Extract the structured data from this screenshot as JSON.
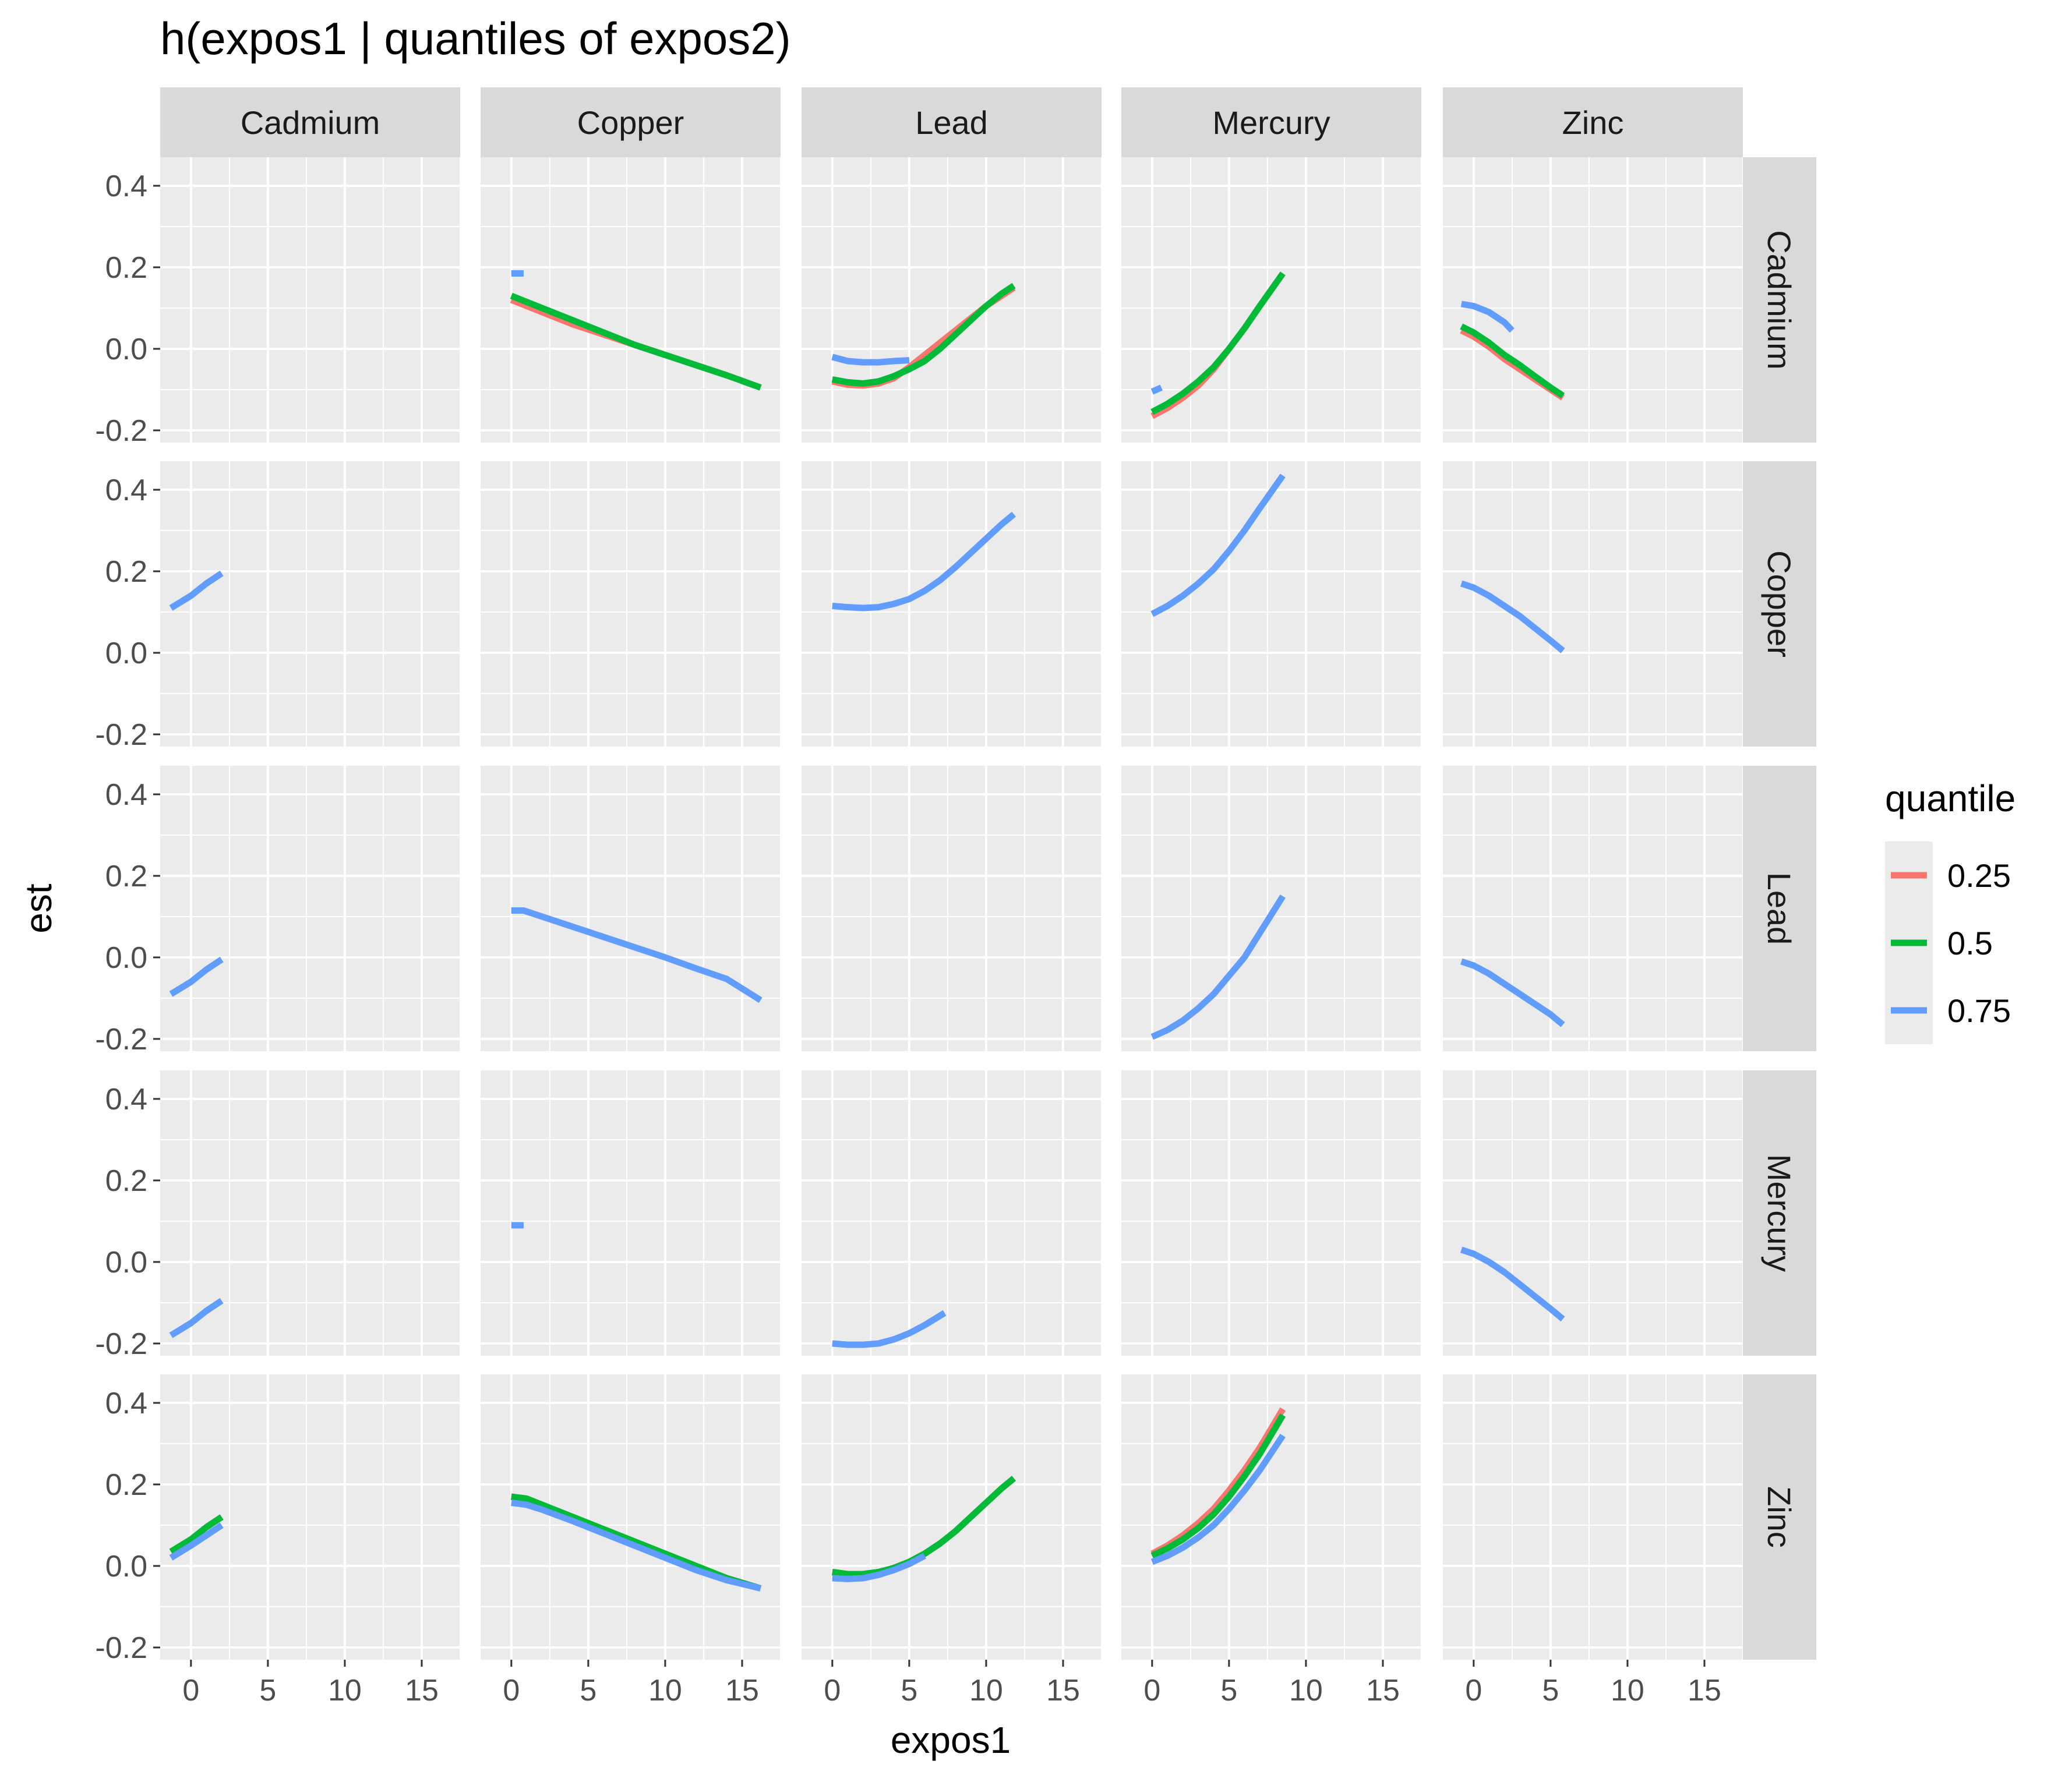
{
  "chart_data": {
    "type": "line",
    "facet": "grid",
    "title": "h(expos1 | quantiles of expos2)",
    "xlabel": "expos1",
    "ylabel": "est",
    "xlim": [
      -2,
      17.5
    ],
    "ylim": [
      -0.23,
      0.47
    ],
    "x_ticks": [
      0,
      5,
      10,
      15
    ],
    "x_tick_labels": [
      "0",
      "5",
      "10",
      "15"
    ],
    "y_ticks": [
      0.4,
      0.2,
      0.0,
      -0.2
    ],
    "y_tick_labels": [
      "0.4",
      "0.2",
      "0.0",
      "-0.2"
    ],
    "col_labels": [
      "Cadmium",
      "Copper",
      "Lead",
      "Mercury",
      "Zinc"
    ],
    "row_labels": [
      "Cadmium",
      "Copper",
      "Lead",
      "Mercury",
      "Zinc"
    ],
    "legend": {
      "title": "quantile",
      "position": "right",
      "items": [
        {
          "label": "0.25",
          "color": "#F8766D"
        },
        {
          "label": "0.5",
          "color": "#00BA38"
        },
        {
          "label": "0.75",
          "color": "#619CFF"
        }
      ]
    },
    "colors": {
      "0.25": "#F8766D",
      "0.5": "#00BA38",
      "0.75": "#619CFF"
    },
    "panels": [
      {
        "row": 0,
        "col": 1,
        "series": [
          {
            "quantile": "0.75",
            "x": [
              0.0,
              0.8
            ],
            "y": [
              0.185,
              0.185
            ]
          },
          {
            "quantile": "0.25",
            "x": [
              0,
              2,
              4,
              6,
              8,
              10,
              12,
              14,
              16.2
            ],
            "y": [
              0.12,
              0.09,
              0.06,
              0.035,
              0.01,
              -0.015,
              -0.04,
              -0.065,
              -0.095
            ]
          },
          {
            "quantile": "0.5",
            "x": [
              0,
              2,
              4,
              6,
              8,
              10,
              12,
              14,
              16.2
            ],
            "y": [
              0.13,
              0.1,
              0.07,
              0.04,
              0.01,
              -0.015,
              -0.04,
              -0.065,
              -0.095
            ]
          }
        ]
      },
      {
        "row": 0,
        "col": 2,
        "series": [
          {
            "quantile": "0.75",
            "x": [
              0,
              1,
              2,
              3,
              4,
              5
            ],
            "y": [
              -0.02,
              -0.03,
              -0.033,
              -0.033,
              -0.03,
              -0.028
            ]
          },
          {
            "quantile": "0.25",
            "x": [
              0,
              1,
              2,
              3,
              4,
              5,
              6,
              7,
              8,
              9,
              10,
              11,
              11.8
            ],
            "y": [
              -0.08,
              -0.088,
              -0.09,
              -0.085,
              -0.072,
              -0.045,
              -0.015,
              0.015,
              0.045,
              0.075,
              0.105,
              0.13,
              0.15
            ]
          },
          {
            "quantile": "0.5",
            "x": [
              0,
              1,
              2,
              3,
              4,
              5,
              6,
              7,
              8,
              9,
              10,
              11,
              11.8
            ],
            "y": [
              -0.075,
              -0.082,
              -0.085,
              -0.08,
              -0.067,
              -0.05,
              -0.03,
              0.0,
              0.035,
              0.07,
              0.105,
              0.135,
              0.155
            ]
          }
        ]
      },
      {
        "row": 0,
        "col": 3,
        "series": [
          {
            "quantile": "0.75",
            "x": [
              0,
              0.6
            ],
            "y": [
              -0.105,
              -0.095
            ]
          },
          {
            "quantile": "0.25",
            "x": [
              0,
              1,
              2,
              3,
              4,
              5,
              6,
              7,
              8.5
            ],
            "y": [
              -0.165,
              -0.145,
              -0.12,
              -0.09,
              -0.05,
              0.0,
              0.05,
              0.105,
              0.185
            ]
          },
          {
            "quantile": "0.5",
            "x": [
              0,
              1,
              2,
              3,
              4,
              5,
              6,
              7,
              8.5
            ],
            "y": [
              -0.155,
              -0.135,
              -0.11,
              -0.08,
              -0.045,
              0.0,
              0.05,
              0.105,
              0.185
            ]
          }
        ]
      },
      {
        "row": 0,
        "col": 4,
        "series": [
          {
            "quantile": "0.75",
            "x": [
              -0.8,
              0,
              1,
              2,
              2.5
            ],
            "y": [
              0.11,
              0.105,
              0.09,
              0.065,
              0.045
            ]
          },
          {
            "quantile": "0.25",
            "x": [
              -0.8,
              0,
              1,
              2,
              3,
              4,
              5,
              5.8
            ],
            "y": [
              0.045,
              0.03,
              0.005,
              -0.025,
              -0.05,
              -0.075,
              -0.1,
              -0.12
            ]
          },
          {
            "quantile": "0.5",
            "x": [
              -0.8,
              0,
              1,
              2,
              3,
              4,
              5,
              5.8
            ],
            "y": [
              0.055,
              0.04,
              0.015,
              -0.015,
              -0.04,
              -0.068,
              -0.095,
              -0.115
            ]
          }
        ]
      },
      {
        "row": 1,
        "col": 0,
        "series": [
          {
            "quantile": "0.75",
            "x": [
              -1.3,
              0,
              1,
              2
            ],
            "y": [
              0.11,
              0.14,
              0.17,
              0.195
            ]
          }
        ]
      },
      {
        "row": 1,
        "col": 2,
        "series": [
          {
            "quantile": "0.75",
            "x": [
              0,
              1,
              2,
              3,
              4,
              5,
              6,
              7,
              8,
              9,
              10,
              11,
              11.8
            ],
            "y": [
              0.115,
              0.112,
              0.11,
              0.112,
              0.12,
              0.132,
              0.152,
              0.178,
              0.21,
              0.245,
              0.28,
              0.315,
              0.34
            ]
          }
        ]
      },
      {
        "row": 1,
        "col": 3,
        "series": [
          {
            "quantile": "0.75",
            "x": [
              0,
              1,
              2,
              3,
              4,
              5,
              6,
              7,
              8.5
            ],
            "y": [
              0.095,
              0.115,
              0.14,
              0.17,
              0.205,
              0.25,
              0.3,
              0.355,
              0.435
            ]
          }
        ]
      },
      {
        "row": 1,
        "col": 4,
        "series": [
          {
            "quantile": "0.75",
            "x": [
              -0.8,
              0,
              1,
              2,
              3,
              4,
              5,
              5.8
            ],
            "y": [
              0.17,
              0.16,
              0.14,
              0.115,
              0.09,
              0.06,
              0.03,
              0.005
            ]
          }
        ]
      },
      {
        "row": 2,
        "col": 0,
        "series": [
          {
            "quantile": "0.75",
            "x": [
              -1.3,
              0,
              1,
              2
            ],
            "y": [
              -0.09,
              -0.06,
              -0.03,
              -0.005
            ]
          }
        ]
      },
      {
        "row": 2,
        "col": 1,
        "series": [
          {
            "quantile": "0.75",
            "x": [
              0,
              0.8,
              2,
              4,
              6,
              8,
              10,
              12,
              14,
              16.2
            ],
            "y": [
              0.115,
              0.115,
              0.1,
              0.075,
              0.05,
              0.025,
              0.0,
              -0.027,
              -0.053,
              -0.105
            ]
          }
        ]
      },
      {
        "row": 2,
        "col": 3,
        "series": [
          {
            "quantile": "0.75",
            "x": [
              0,
              1,
              2,
              3,
              4,
              5,
              6,
              7,
              8.5
            ],
            "y": [
              -0.195,
              -0.178,
              -0.155,
              -0.125,
              -0.09,
              -0.045,
              0.0,
              0.06,
              0.15
            ]
          }
        ]
      },
      {
        "row": 2,
        "col": 4,
        "series": [
          {
            "quantile": "0.75",
            "x": [
              -0.8,
              0,
              1,
              2,
              3,
              4,
              5,
              5.8
            ],
            "y": [
              -0.01,
              -0.02,
              -0.04,
              -0.065,
              -0.09,
              -0.115,
              -0.14,
              -0.165
            ]
          }
        ]
      },
      {
        "row": 3,
        "col": 0,
        "series": [
          {
            "quantile": "0.75",
            "x": [
              -1.3,
              0,
              1,
              2
            ],
            "y": [
              -0.18,
              -0.15,
              -0.12,
              -0.095
            ]
          }
        ]
      },
      {
        "row": 3,
        "col": 1,
        "series": [
          {
            "quantile": "0.75",
            "x": [
              0.0,
              0.8
            ],
            "y": [
              0.09,
              0.09
            ]
          }
        ]
      },
      {
        "row": 3,
        "col": 2,
        "series": [
          {
            "quantile": "0.75",
            "x": [
              0,
              1,
              2,
              3,
              4,
              5,
              6,
              7.3
            ],
            "y": [
              -0.2,
              -0.203,
              -0.203,
              -0.2,
              -0.19,
              -0.175,
              -0.155,
              -0.125
            ]
          }
        ]
      },
      {
        "row": 3,
        "col": 4,
        "series": [
          {
            "quantile": "0.75",
            "x": [
              -0.8,
              0,
              1,
              2,
              3,
              4,
              5,
              5.8
            ],
            "y": [
              0.03,
              0.02,
              0.0,
              -0.025,
              -0.055,
              -0.085,
              -0.115,
              -0.14
            ]
          }
        ]
      },
      {
        "row": 4,
        "col": 0,
        "series": [
          {
            "quantile": "0.25",
            "x": [
              -1.3,
              0,
              1,
              2
            ],
            "y": [
              0.035,
              0.065,
              0.095,
              0.12
            ]
          },
          {
            "quantile": "0.5",
            "x": [
              -1.3,
              0,
              1,
              2
            ],
            "y": [
              0.035,
              0.065,
              0.095,
              0.12
            ]
          },
          {
            "quantile": "0.75",
            "x": [
              -1.3,
              0,
              1,
              2
            ],
            "y": [
              0.02,
              0.05,
              0.075,
              0.1
            ]
          }
        ]
      },
      {
        "row": 4,
        "col": 1,
        "series": [
          {
            "quantile": "0.25",
            "x": [
              0,
              1,
              2,
              4,
              6,
              8,
              10,
              12,
              14,
              16.2
            ],
            "y": [
              0.17,
              0.165,
              0.15,
              0.12,
              0.09,
              0.06,
              0.03,
              0.0,
              -0.03,
              -0.055
            ]
          },
          {
            "quantile": "0.5",
            "x": [
              0,
              1,
              2,
              4,
              6,
              8,
              10,
              12,
              14,
              16.2
            ],
            "y": [
              0.17,
              0.165,
              0.15,
              0.12,
              0.09,
              0.06,
              0.03,
              0.0,
              -0.03,
              -0.055
            ]
          },
          {
            "quantile": "0.75",
            "x": [
              0,
              1,
              2,
              4,
              6,
              8,
              10,
              12,
              14,
              16.2
            ],
            "y": [
              0.155,
              0.15,
              0.138,
              0.11,
              0.08,
              0.05,
              0.02,
              -0.01,
              -0.035,
              -0.055
            ]
          }
        ]
      },
      {
        "row": 4,
        "col": 2,
        "series": [
          {
            "quantile": "0.25",
            "x": [
              0,
              1,
              2,
              3,
              4,
              5,
              6,
              7,
              8,
              9,
              10,
              11,
              11.8
            ],
            "y": [
              -0.015,
              -0.02,
              -0.02,
              -0.015,
              -0.005,
              0.01,
              0.03,
              0.055,
              0.085,
              0.12,
              0.155,
              0.19,
              0.215
            ]
          },
          {
            "quantile": "0.5",
            "x": [
              0,
              1,
              2,
              3,
              4,
              5,
              6,
              7,
              8,
              9,
              10,
              11,
              11.8
            ],
            "y": [
              -0.015,
              -0.02,
              -0.02,
              -0.015,
              -0.005,
              0.01,
              0.03,
              0.055,
              0.085,
              0.12,
              0.155,
              0.19,
              0.215
            ]
          },
          {
            "quantile": "0.75",
            "x": [
              0,
              1,
              2,
              3,
              4,
              5,
              6
            ],
            "y": [
              -0.03,
              -0.032,
              -0.03,
              -0.022,
              -0.01,
              0.005,
              0.025
            ]
          }
        ]
      },
      {
        "row": 4,
        "col": 3,
        "series": [
          {
            "quantile": "0.25",
            "x": [
              0,
              1,
              2,
              3,
              4,
              5,
              6,
              7,
              8.5
            ],
            "y": [
              0.03,
              0.05,
              0.075,
              0.105,
              0.14,
              0.185,
              0.235,
              0.29,
              0.385
            ]
          },
          {
            "quantile": "0.5",
            "x": [
              0,
              1,
              2,
              3,
              4,
              5,
              6,
              7,
              8.5
            ],
            "y": [
              0.025,
              0.043,
              0.065,
              0.093,
              0.127,
              0.17,
              0.22,
              0.275,
              0.37
            ]
          },
          {
            "quantile": "0.75",
            "x": [
              0,
              1,
              2,
              3,
              4,
              5,
              6,
              7,
              8.5
            ],
            "y": [
              0.01,
              0.025,
              0.045,
              0.07,
              0.1,
              0.14,
              0.185,
              0.235,
              0.32
            ]
          }
        ]
      }
    ]
  }
}
